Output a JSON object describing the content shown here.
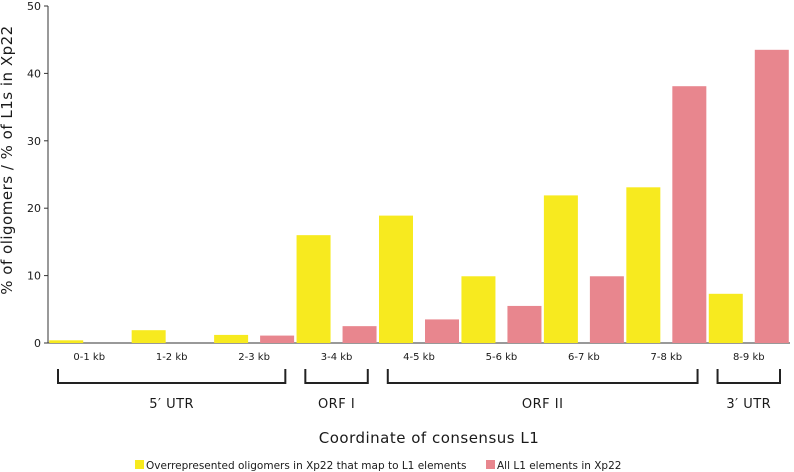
{
  "chart_data": {
    "type": "bar",
    "title": "",
    "xlabel": "Coordinate of consensus L1",
    "ylabel": "% of oligomers / % of L1s in Xp22",
    "ylim": [
      0,
      50
    ],
    "yticks": [
      0,
      10,
      20,
      30,
      40,
      50
    ],
    "grid": false,
    "categories": [
      "0-1 kb",
      "1-2 kb",
      "2-3 kb",
      "3-4 kb",
      "4-5 kb",
      "5-6 kb",
      "6-7 kb",
      "7-8 kb",
      "8-9 kb"
    ],
    "series": [
      {
        "name": "Overrepresented oligomers in Xp22 that map to L1 elements",
        "color": "#f7ea1f",
        "values": [
          0.4,
          1.9,
          1.2,
          16.0,
          18.9,
          9.9,
          21.9,
          23.1,
          7.3
        ]
      },
      {
        "name": "All L1 elements in Xp22",
        "color": "#e8868e",
        "values": [
          0,
          0,
          1.1,
          2.5,
          3.5,
          5.5,
          9.9,
          38.1,
          43.5
        ]
      }
    ],
    "regions": [
      {
        "label": "5′ UTR",
        "from": 0,
        "to": 2
      },
      {
        "label": "ORF I",
        "from": 3,
        "to": 3
      },
      {
        "label": "ORF II",
        "from": 4,
        "to": 7
      },
      {
        "label": "3′ UTR",
        "from": 8,
        "to": 8
      }
    ],
    "legend_position": "bottom"
  }
}
